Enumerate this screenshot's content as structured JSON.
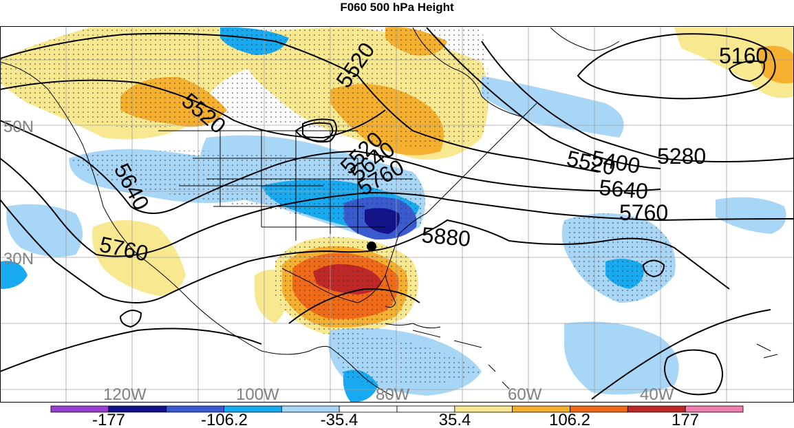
{
  "title": "F060 500 hPa Height",
  "map": {
    "lat_labels": [
      "50N",
      "30N"
    ],
    "lon_labels": [
      "120W",
      "100W",
      "80W",
      "60W",
      "40W"
    ],
    "contour_labels": [
      "5160",
      "5280",
      "5400",
      "5520",
      "5520",
      "5520",
      "5520",
      "5640",
      "5640",
      "5640",
      "5760",
      "5760",
      "5760",
      "5880"
    ],
    "storm_marker": "storm-center",
    "colors": {
      "land_lines": "#000000",
      "grid": "#a0a0a0"
    }
  },
  "colorbar": {
    "labels": [
      "-177",
      "-106.2",
      "-35.4",
      "35.4",
      "106.2",
      "177"
    ],
    "colors": [
      "#9a3fd0",
      "#12128a",
      "#3a5ad0",
      "#18aaf0",
      "#a8d6f6",
      "#ffffff",
      "#ffffff",
      "#f8e890",
      "#f5b030",
      "#f06a18",
      "#c02828",
      "#f080b0"
    ]
  }
}
